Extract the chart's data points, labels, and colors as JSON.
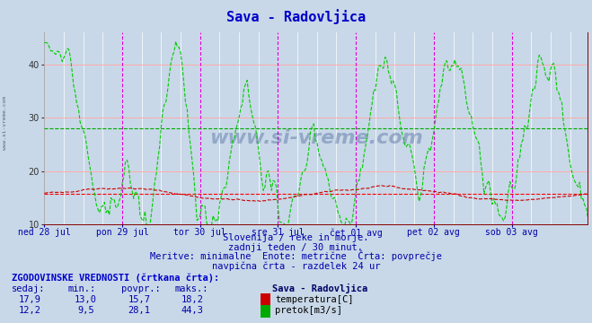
{
  "title": "Sava - Radovljica",
  "title_color": "#0000cc",
  "bg_color": "#c8d8e8",
  "plot_bg_color": "#c8d8e8",
  "ylim": [
    10,
    46
  ],
  "yticks": [
    10,
    20,
    30,
    40
  ],
  "x_labels": [
    "ned 28 jul",
    "pon 29 jul",
    "tor 30 jul",
    "sre 31 jul",
    "čet 01 avg",
    "pet 02 avg",
    "sob 03 avg"
  ],
  "vline_color": "#ff00ff",
  "temp_avg_val": 15.7,
  "flow_avg_val": 28.1,
  "temp_line_color": "#cc0000",
  "flow_line_color": "#00cc00",
  "subtitle1": "Slovenija / reke in morje.",
  "subtitle2": "zadnji teden / 30 minut.",
  "subtitle3": "Meritve: minimalne  Enote: metrične  Črta: povprečje",
  "subtitle4": "navpična črta - razdelek 24 ur",
  "subtitle_color": "#0000aa",
  "table_header": "ZGODOVINSKE VREDNOSTI (črtkana črta):",
  "table_cols": [
    "sedaj:",
    "min.:",
    "povpr.:",
    "maks.:"
  ],
  "temp_row": [
    "17,9",
    "13,0",
    "15,7",
    "18,2"
  ],
  "flow_row": [
    "12,2",
    "9,5",
    "28,1",
    "44,3"
  ],
  "legend_station": "Sava - Radovljica",
  "legend_temp": "temperatura[C]",
  "legend_flow": "pretok[m3/s]",
  "n_points": 336,
  "days": 7
}
